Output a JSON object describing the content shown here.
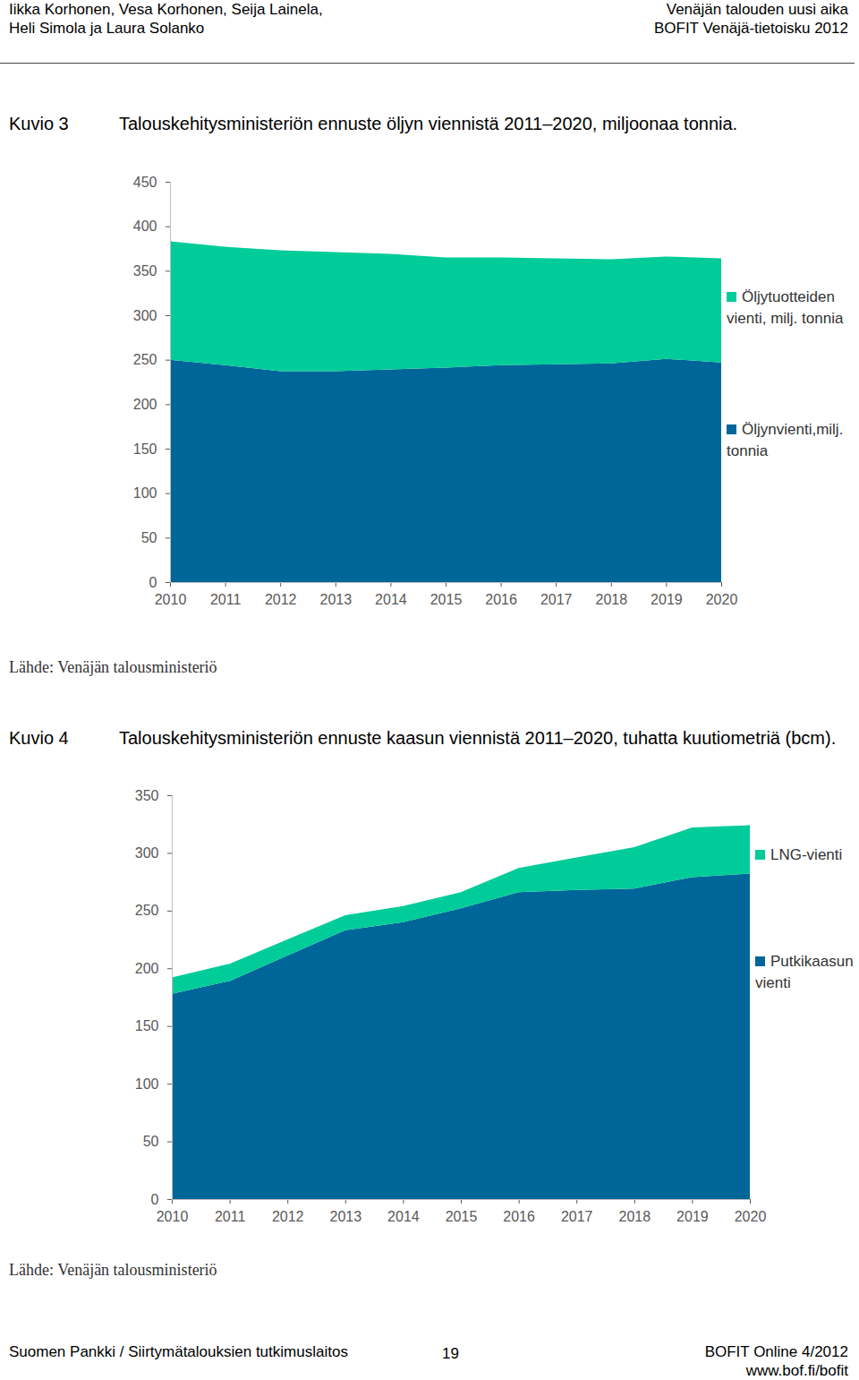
{
  "header": {
    "left": [
      "Iikka Korhonen, Vesa Korhonen, Seija Lainela,",
      "Heli Simola ja Laura Solanko"
    ],
    "right": [
      "Venäjän talouden uusi aika",
      "BOFIT Venäjä-tietoisku 2012"
    ]
  },
  "footer": {
    "left": "Suomen Pankki / Siirtymätalouksien tutkimuslaitos",
    "page": "19",
    "right": [
      "BOFIT Online 4/2012",
      "www.bof.fi/bofit"
    ]
  },
  "chart_data": [
    {
      "type": "area",
      "stacked": true,
      "figure": "Kuvio 3",
      "title": "Talouskehitysministeriön ennuste öljyn viennistä 2011–2020, miljoonaa tonnia.",
      "source": "Lähde: Venäjän talousministeriö",
      "x": [
        2010,
        2011,
        2012,
        2013,
        2014,
        2015,
        2016,
        2017,
        2018,
        2019,
        2020
      ],
      "xlim": [
        2010,
        2020
      ],
      "xticks": [
        2010,
        2011,
        2012,
        2013,
        2014,
        2015,
        2016,
        2017,
        2018,
        2019,
        2020
      ],
      "ylim": [
        0,
        450
      ],
      "yticks": [
        0,
        50,
        100,
        150,
        200,
        250,
        300,
        350,
        400,
        450
      ],
      "grid": false,
      "legend": "right",
      "series": [
        {
          "name": "Öljynvienti,milj. tonnia",
          "color": "#006699",
          "values": [
            250,
            244,
            237,
            237,
            239,
            241,
            244,
            245,
            246,
            251,
            247
          ]
        },
        {
          "name": "Öljytuotteiden vienti, milj. tonnia",
          "color": "#00cc99",
          "values": [
            133,
            133,
            136,
            134,
            130,
            124,
            121,
            119,
            117,
            115,
            117
          ]
        }
      ]
    },
    {
      "type": "area",
      "stacked": true,
      "figure": "Kuvio 4",
      "title": "Talouskehitysministeriön ennuste kaasun viennistä 2011–2020, tuhatta kuutiometriä (bcm).",
      "source": "Lähde: Venäjän talousministeriö",
      "x": [
        2010,
        2011,
        2012,
        2013,
        2014,
        2015,
        2016,
        2017,
        2018,
        2019,
        2020
      ],
      "xlim": [
        2010,
        2020
      ],
      "xticks": [
        2010,
        2011,
        2012,
        2013,
        2014,
        2015,
        2016,
        2017,
        2018,
        2019,
        2020
      ],
      "ylim": [
        0,
        350
      ],
      "yticks": [
        0,
        50,
        100,
        150,
        200,
        250,
        300,
        350
      ],
      "grid": false,
      "legend": "right",
      "series": [
        {
          "name": "Putkikaasun vienti",
          "color": "#006699",
          "values": [
            178,
            189,
            211,
            233,
            240,
            252,
            266,
            268,
            269,
            279,
            282
          ]
        },
        {
          "name": "LNG-vienti",
          "color": "#00cc99",
          "values": [
            14,
            15,
            14,
            13,
            14,
            14,
            21,
            28,
            36,
            43,
            42
          ]
        }
      ]
    }
  ]
}
